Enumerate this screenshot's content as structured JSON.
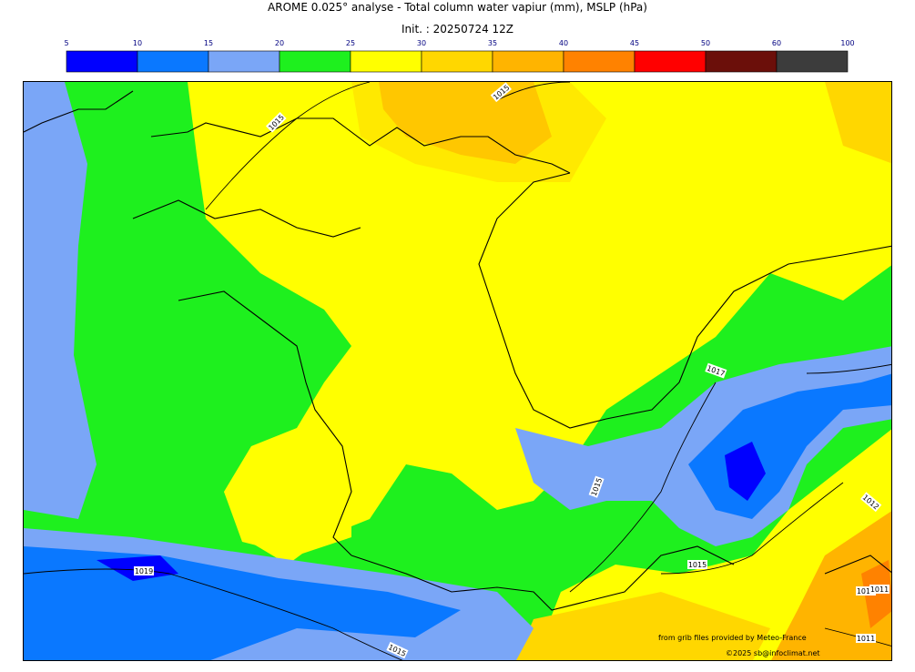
{
  "title": "AROME 0.025° analyse - Total column water vapiur (mm), MSLP (hPa)",
  "init": "Init. : 20250724 12Z",
  "colorbar": {
    "ticks": [
      "5",
      "10",
      "15",
      "20",
      "25",
      "30",
      "35",
      "40",
      "45",
      "50",
      "60",
      "100"
    ],
    "colors": [
      "#0000ff",
      "#0a78ff",
      "#7aa6f7",
      "#1ef01e",
      "#ffff00",
      "#ffd700",
      "#ffb400",
      "#ff8200",
      "#ff0000",
      "#6b0f0a",
      "#3c3c3c"
    ]
  },
  "pressure_labels": [
    "1015",
    "1015",
    "1019",
    "1015",
    "1015",
    "1017",
    "1015",
    "1011",
    "1011",
    "1011",
    "1012"
  ],
  "credits": {
    "source": "from grib files provided by Meteo-France",
    "copyright": "©2025 sb@infoclimat.net"
  }
}
